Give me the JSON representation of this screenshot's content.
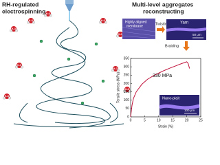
{
  "left": {
    "title_line1": "RH-regulated",
    "title_line2": "electrospinning",
    "water": "H₂O"
  },
  "right": {
    "title_line1": "Multi-level aggregates",
    "title_line2": "reconstructing",
    "membrane_line1": "Highly aligned",
    "membrane_line2": "membrane",
    "twisting": "Twisting",
    "yarn": "Yarn",
    "yarn_scale": "50 μm",
    "braiding": "Braiding",
    "nano_plait": "Nano-plait",
    "plait_scale": "100 μm"
  },
  "chart_data": {
    "type": "line",
    "xlabel": "Strain (%)",
    "ylabel": "Tensile stress (MPa)",
    "annotation": "330 MPa",
    "series": [
      {
        "name": "Nano-plait",
        "color": "#c0143c",
        "x": [
          0,
          0.5,
          1,
          2,
          4,
          6,
          8,
          10,
          12,
          14,
          16,
          18,
          20,
          20.5,
          21
        ],
        "values": [
          0,
          70,
          110,
          150,
          195,
          225,
          245,
          262,
          278,
          292,
          305,
          318,
          330,
          320,
          290
        ]
      }
    ],
    "xlim": [
      0,
      25
    ],
    "xticks": [
      0,
      5,
      10,
      15,
      20,
      25
    ],
    "ylim": [
      0,
      350
    ],
    "yticks": [
      0,
      50,
      100,
      150,
      200,
      250,
      300,
      350
    ]
  }
}
